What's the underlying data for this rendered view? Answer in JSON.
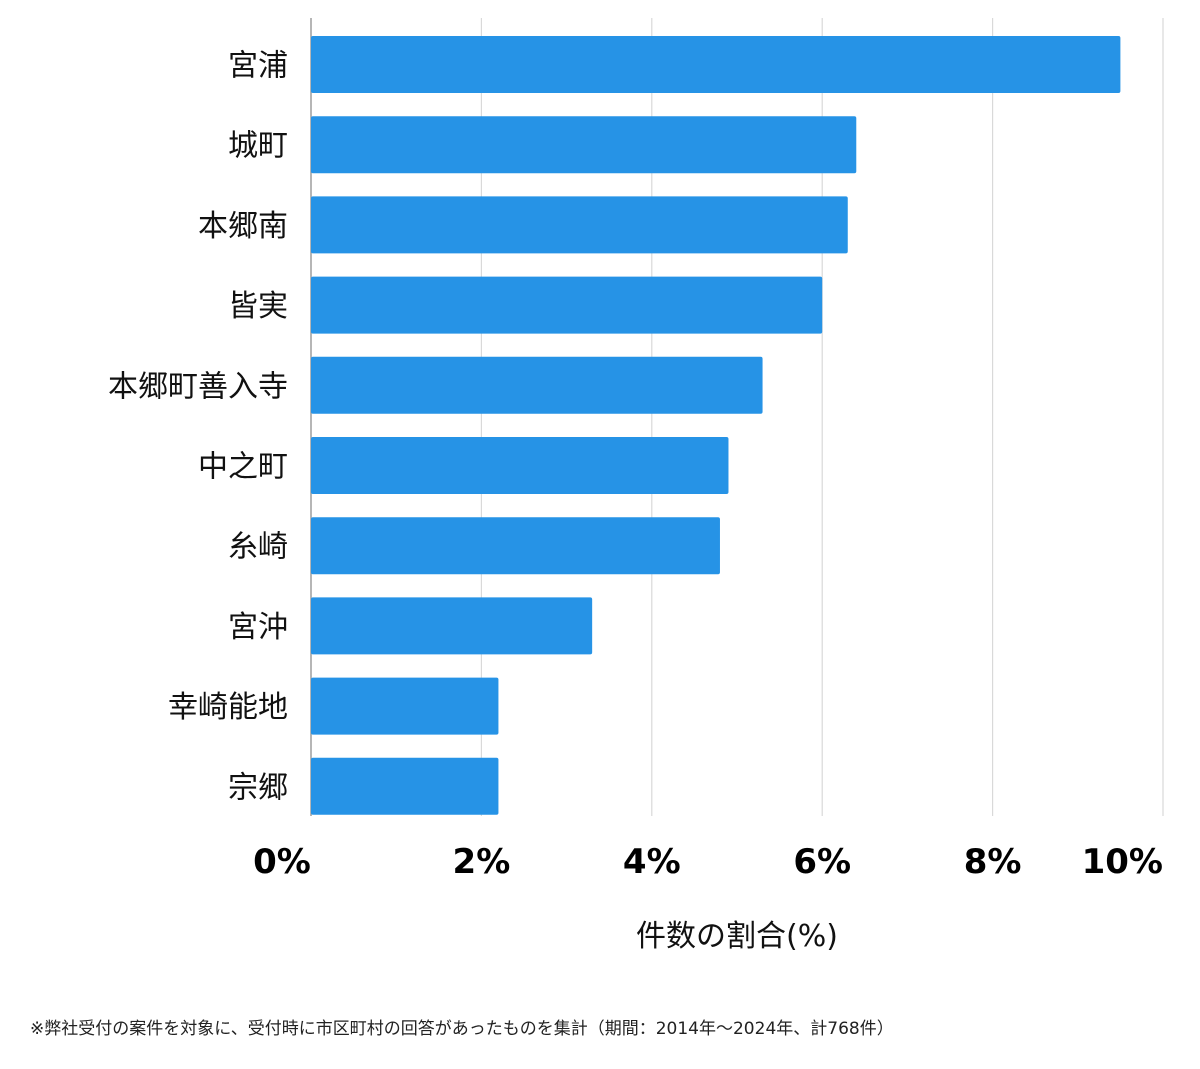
{
  "chart_data": {
    "type": "bar",
    "orientation": "horizontal",
    "categories": [
      "宮浦",
      "城町",
      "本郷南",
      "皆実",
      "本郷町善入寺",
      "中之町",
      "糸崎",
      "宮沖",
      "幸崎能地",
      "宗郷"
    ],
    "values": [
      9.5,
      6.4,
      6.3,
      6.0,
      5.3,
      4.9,
      4.8,
      3.3,
      2.2,
      2.2
    ],
    "xlabel": "件数の割合(%)",
    "ylabel": "",
    "xlim": [
      0,
      10
    ],
    "xticks": [
      0,
      2,
      4,
      6,
      8,
      10
    ],
    "tick_labels": [
      "0%",
      "2%",
      "4%",
      "6%",
      "8%",
      "10%"
    ],
    "grid": true,
    "colors": {
      "bar": "#2693e6",
      "grid": "#d9d9d9",
      "axis": "#9e9e9e"
    }
  },
  "footnote": "※弊社受付の案件を対象に、受付時に市区町村の回答があったものを集計（期間：2014年～2024年、計768件）"
}
